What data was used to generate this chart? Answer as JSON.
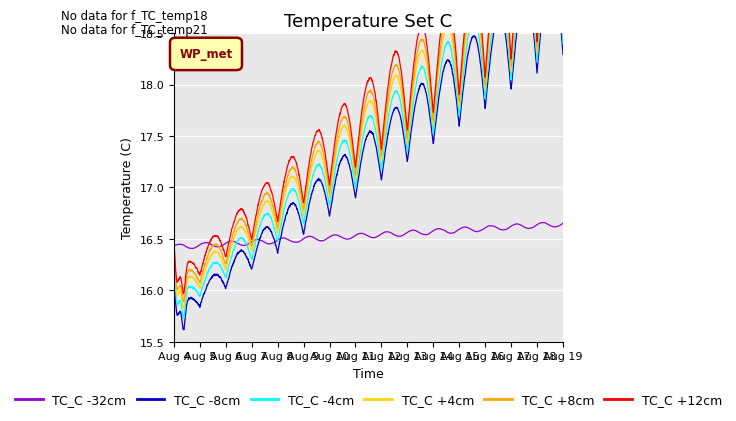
{
  "title": "Temperature Set C",
  "ylabel": "Temperature (C)",
  "xlabel": "Time",
  "annotations": [
    "No data for f_TC_temp18",
    "No data for f_TC_temp21"
  ],
  "legend_label": "WP_met",
  "series": [
    {
      "label": "TC_C -32cm",
      "color": "#9400D3"
    },
    {
      "label": "TC_C -8cm",
      "color": "#0000CD"
    },
    {
      "label": "TC_C -4cm",
      "color": "#00FFFF"
    },
    {
      "label": "TC_C +4cm",
      "color": "#FFD700"
    },
    {
      "label": "TC_C +8cm",
      "color": "#FFA500"
    },
    {
      "label": "TC_C +12cm",
      "color": "#FF0000"
    }
  ],
  "ylim": [
    15.5,
    18.5
  ],
  "xtick_labels": [
    "Aug 4",
    "Aug 5",
    "Aug 6",
    "Aug 7",
    "Aug 8",
    "Aug 9",
    "Aug 10",
    "Aug 11",
    "Aug 12",
    "Aug 13",
    "Aug 14",
    "Aug 15",
    "Aug 16",
    "Aug 17",
    "Aug 18",
    "Aug 19"
  ],
  "ytick_labels": [
    "15.5",
    "16.0",
    "16.5",
    "17.0",
    "17.5",
    "18.0",
    "18.5"
  ],
  "bg_color": "#E8E8E8",
  "fig_bg": "#FFFFFF",
  "title_fontsize": 13,
  "axis_fontsize": 9,
  "tick_fontsize": 8,
  "legend_fontsize": 9,
  "n_points": 3600,
  "linewidth": 0.9
}
